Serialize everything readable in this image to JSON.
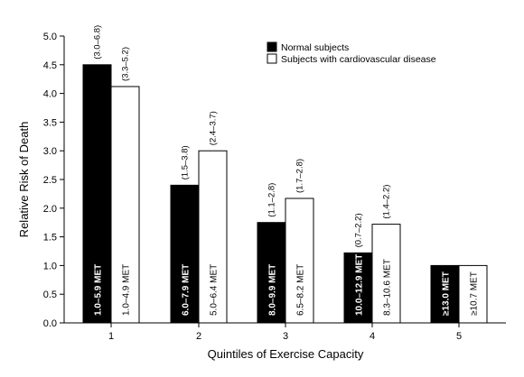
{
  "chart_data": {
    "type": "bar",
    "xlabel": "Quintiles of Exercise Capacity",
    "ylabel": "Relative Risk of Death",
    "categories": [
      "1",
      "2",
      "3",
      "4",
      "5"
    ],
    "ylim": [
      0,
      5.0
    ],
    "yticks": [
      "0.0",
      "0.5",
      "1.0",
      "1.5",
      "2.0",
      "2.5",
      "3.0",
      "3.5",
      "4.0",
      "4.5",
      "5.0"
    ],
    "grid": false,
    "legend_position": "top-right",
    "series": [
      {
        "name": "Normal subjects",
        "color": "#000000",
        "values": [
          4.5,
          2.4,
          1.75,
          1.22,
          1.0
        ],
        "ci_labels": [
          "(3.0–6.8)",
          "(1.5–3.8)",
          "(1.1–2.8)",
          "(0.7–2.2)",
          ""
        ],
        "bar_labels": [
          "1.0–5.9 MET",
          "6.0–7.9 MET",
          "8.0–9.9 MET",
          "10.0–12.9 MET",
          "≥13.0 MET"
        ]
      },
      {
        "name": "Subjects with cardiovascular disease",
        "color": "#ffffff",
        "values": [
          4.12,
          3.0,
          2.17,
          1.72,
          1.0
        ],
        "ci_labels": [
          "(3.3–5.2)",
          "(2.4–3.7)",
          "(1.7–2.8)",
          "(1.4–2.2)",
          ""
        ],
        "bar_labels": [
          "1.0–4.9 MET",
          "5.0–6.4 MET",
          "6.5–8.2 MET",
          "8.3–10.6 MET",
          "≥10.7 MET"
        ]
      }
    ]
  }
}
